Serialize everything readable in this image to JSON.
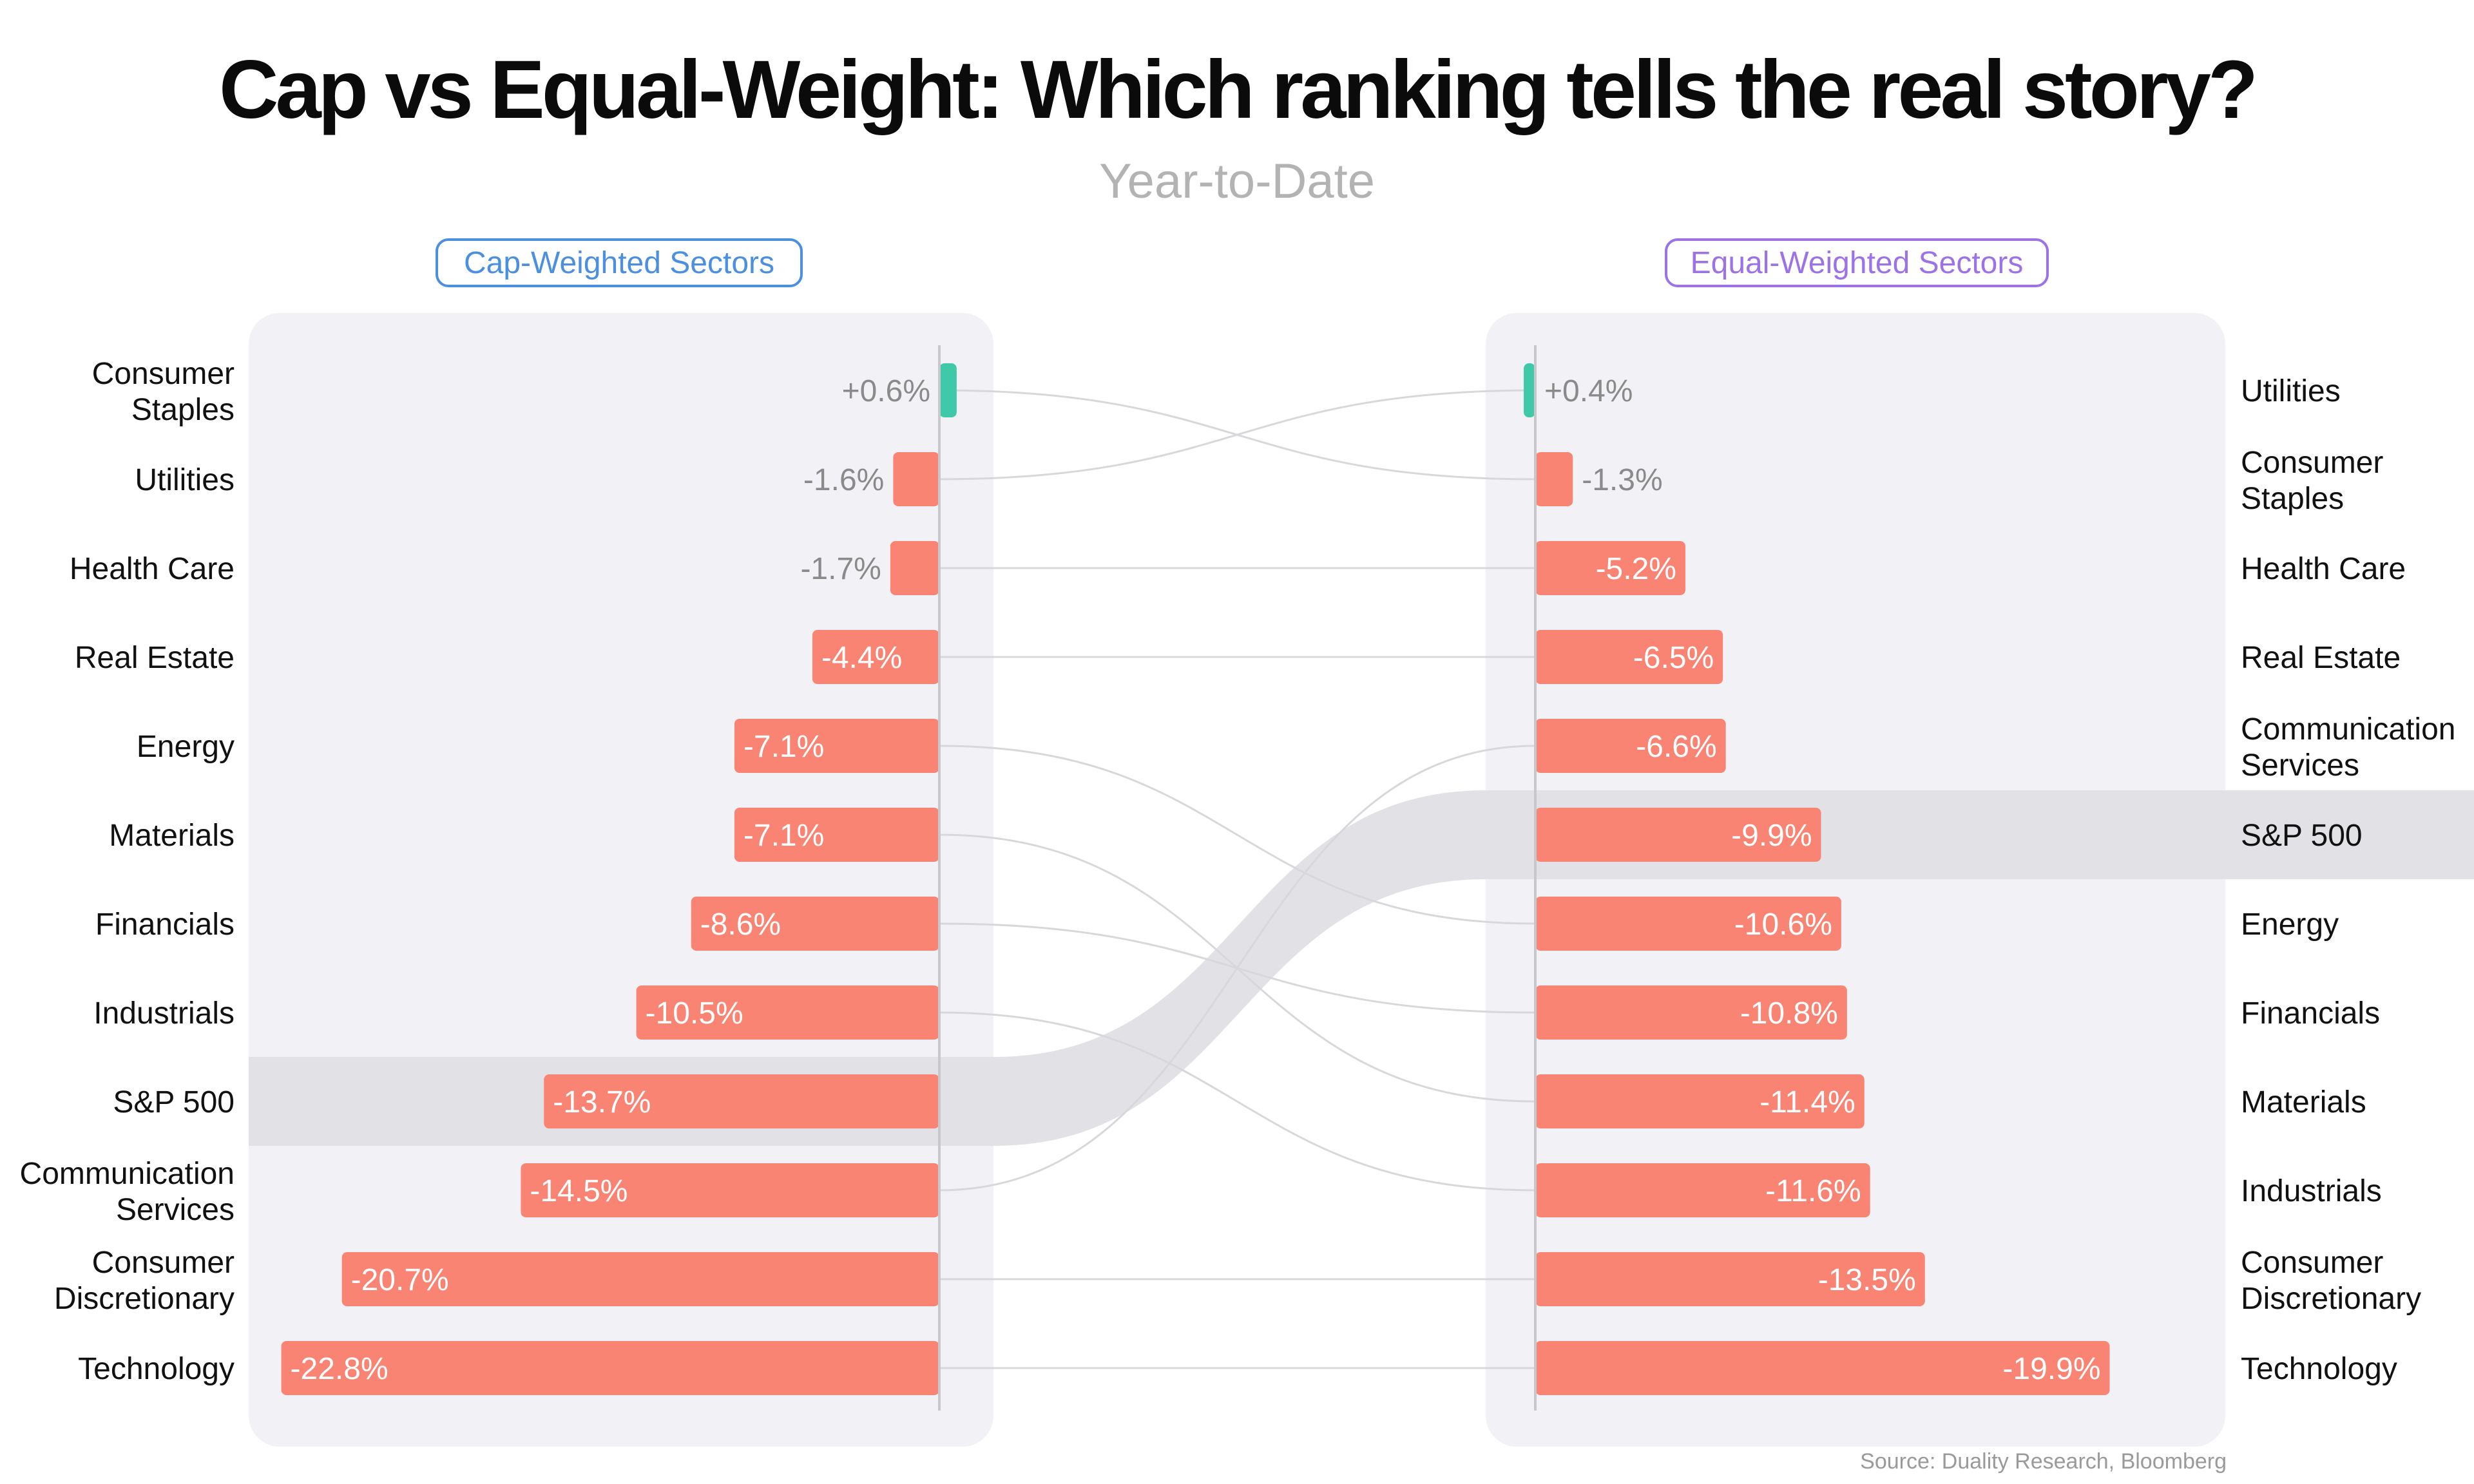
{
  "title": "Cap vs Equal-Weight: Which ranking tells the real story?",
  "subtitle": "Year-to-Date",
  "source": "Source: Duality Research, Bloomberg",
  "colors": {
    "negative": "#fa8473",
    "positive": "#40c9a9",
    "highlight": "#e2e2e6",
    "panel": "#f2f2f6",
    "connector": "#d8d8dc"
  },
  "chart_data": {
    "type": "bar",
    "panels": [
      {
        "name": "Cap-Weighted Sectors",
        "categories": [
          "Consumer Staples",
          "Utilities",
          "Health Care",
          "Real Estate",
          "Energy",
          "Materials",
          "Financials",
          "Industrials",
          "S&P 500",
          "Communication Services",
          "Consumer Discretionary",
          "Technology"
        ],
        "values": [
          0.6,
          -1.6,
          -1.7,
          -4.4,
          -7.1,
          -7.1,
          -8.6,
          -10.5,
          -13.7,
          -14.5,
          -20.7,
          -22.8
        ],
        "labels": [
          "+0.6%",
          "-1.6%",
          "-1.7%",
          "-4.4%",
          "-7.1%",
          "-7.1%",
          "-8.6%",
          "-10.5%",
          "-13.7%",
          "-14.5%",
          "-20.7%",
          "-22.8%"
        ],
        "highlight": "S&P 500"
      },
      {
        "name": "Equal-Weighted Sectors",
        "categories": [
          "Utilities",
          "Consumer Staples",
          "Health Care",
          "Real Estate",
          "Communication Services",
          "S&P 500",
          "Energy",
          "Financials",
          "Materials",
          "Industrials",
          "Consumer Discretionary",
          "Technology"
        ],
        "values": [
          0.4,
          -1.3,
          -5.2,
          -6.5,
          -6.6,
          -9.9,
          -10.6,
          -10.8,
          -11.4,
          -11.6,
          -13.5,
          -19.9
        ],
        "labels": [
          "+0.4%",
          "-1.3%",
          "-5.2%",
          "-6.5%",
          "-6.6%",
          "-9.9%",
          "-10.6%",
          "-10.8%",
          "-11.4%",
          "-11.6%",
          "-13.5%",
          "-19.9%"
        ],
        "highlight": "S&P 500"
      }
    ],
    "unit": "%",
    "grid": false,
    "legend": "none"
  }
}
